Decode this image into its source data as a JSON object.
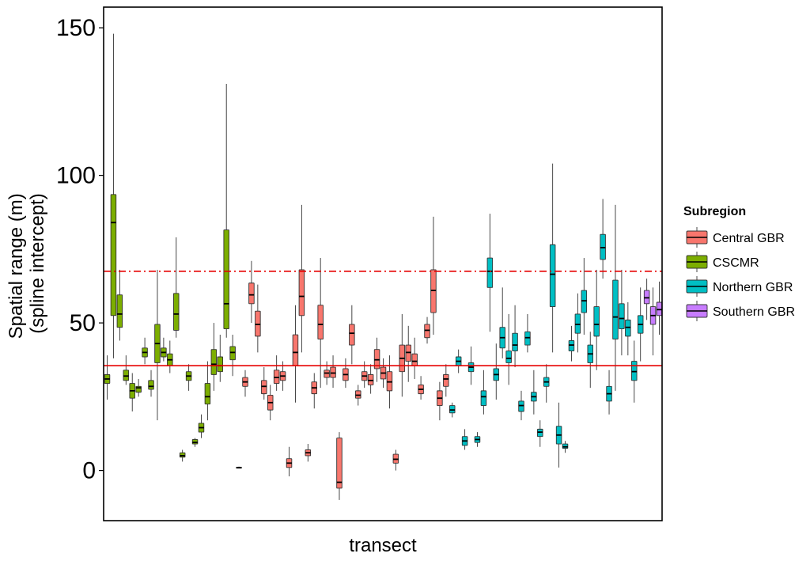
{
  "chart_data": {
    "type": "boxplot",
    "xlabel": "transect",
    "ylabel_lines": [
      "Spatial range (m)",
      "(spline intercept)"
    ],
    "ylim": [
      -17,
      157
    ],
    "yticks": [
      0,
      50,
      100,
      150
    ],
    "ytick_labels": [
      "0",
      "50",
      "100",
      "150"
    ],
    "grid": false,
    "legend": {
      "title": "Subregion",
      "placement": "right",
      "entries": [
        {
          "label": "Central GBR",
          "key": "central",
          "color": "#F8766D"
        },
        {
          "label": "CSCMR",
          "key": "cscmr",
          "color": "#7CAE00"
        },
        {
          "label": "Northern GBR",
          "key": "northern",
          "color": "#00BFC4"
        },
        {
          "label": "Southern GBR",
          "key": "southern",
          "color": "#C77CFF"
        }
      ]
    },
    "reference_lines": [
      {
        "y": 35.5,
        "style": "solid",
        "color": "#E60000"
      },
      {
        "y": 67.5,
        "style": "dashdot",
        "color": "#E60000"
      }
    ],
    "boxes": [
      {
        "g": "cscmr",
        "min": 24,
        "q1": 29.5,
        "med": 31,
        "q3": 32.5,
        "max": 39
      },
      {
        "g": "cscmr",
        "min": 38,
        "q1": 52.5,
        "med": 84,
        "q3": 93.5,
        "max": 148
      },
      {
        "g": "cscmr",
        "min": 44,
        "q1": 48.5,
        "med": 53,
        "q3": 59.5,
        "max": 68
      },
      {
        "g": "cscmr",
        "min": 29,
        "q1": 30.5,
        "med": 32,
        "q3": 34,
        "max": 39
      },
      {
        "g": "cscmr",
        "min": 20,
        "q1": 24.5,
        "med": 27,
        "q3": 29.5,
        "max": 33
      },
      {
        "g": "cscmr",
        "min": 25,
        "q1": 26.5,
        "med": 28,
        "q3": 28.5,
        "max": 31
      },
      {
        "g": "cscmr",
        "min": 36,
        "q1": 38.5,
        "med": 40,
        "q3": 41.5,
        "max": 45
      },
      {
        "g": "cscmr",
        "min": 25,
        "q1": 27.5,
        "med": 28.5,
        "q3": 30.5,
        "max": 34
      },
      {
        "g": "cscmr",
        "min": 17,
        "q1": 36.5,
        "med": 43,
        "q3": 49.5,
        "max": 68
      },
      {
        "g": "cscmr",
        "min": 37,
        "q1": 38.5,
        "med": 40,
        "q3": 41.5,
        "max": 45
      },
      {
        "g": "cscmr",
        "min": 33,
        "q1": 35.5,
        "med": 37.5,
        "q3": 39.5,
        "max": 44
      },
      {
        "g": "cscmr",
        "min": 45,
        "q1": 47.5,
        "med": 53,
        "q3": 60,
        "max": 79
      },
      {
        "g": "cscmr",
        "min": 3,
        "q1": 4.5,
        "med": 5,
        "q3": 6,
        "max": 7
      },
      {
        "g": "cscmr",
        "min": 27,
        "q1": 30.5,
        "med": 32,
        "q3": 33.5,
        "max": 36
      },
      {
        "g": "cscmr",
        "min": 8,
        "q1": 9,
        "med": 9.5,
        "q3": 10.5,
        "max": 11
      },
      {
        "g": "cscmr",
        "min": 11,
        "q1": 13,
        "med": 14.5,
        "q3": 16,
        "max": 19
      },
      {
        "g": "cscmr",
        "min": 17,
        "q1": 22.5,
        "med": 25,
        "q3": 29.5,
        "max": 37
      },
      {
        "g": "cscmr",
        "min": 27,
        "q1": 32.5,
        "med": 36,
        "q3": 41,
        "max": 50
      },
      {
        "g": "cscmr",
        "min": 30,
        "q1": 33.5,
        "med": 35.5,
        "q3": 38.5,
        "max": 46
      },
      {
        "g": "cscmr",
        "min": 45,
        "q1": 48,
        "med": 56.5,
        "q3": 81.5,
        "max": 131
      },
      {
        "g": "cscmr",
        "min": 32,
        "q1": 37.5,
        "med": 40,
        "q3": 42,
        "max": 46
      },
      {
        "g": "central",
        "min": 0.7,
        "q1": 0.9,
        "med": 1,
        "q3": 1.1,
        "max": 1.3
      },
      {
        "g": "central",
        "min": 25,
        "q1": 28.5,
        "med": 30,
        "q3": 31.5,
        "max": 34
      },
      {
        "g": "central",
        "min": 50,
        "q1": 56.5,
        "med": 59.5,
        "q3": 63.5,
        "max": 71
      },
      {
        "g": "central",
        "min": 40,
        "q1": 45.5,
        "med": 49.5,
        "q3": 54,
        "max": 63
      },
      {
        "g": "central",
        "min": 24,
        "q1": 26,
        "med": 28.5,
        "q3": 30.5,
        "max": 35
      },
      {
        "g": "central",
        "min": 17,
        "q1": 20.5,
        "med": 23,
        "q3": 25.5,
        "max": 29
      },
      {
        "g": "central",
        "min": 27,
        "q1": 29.5,
        "med": 31.5,
        "q3": 34,
        "max": 39
      },
      {
        "g": "central",
        "min": 27,
        "q1": 30.5,
        "med": 32,
        "q3": 33.5,
        "max": 37
      },
      {
        "g": "central",
        "min": -2,
        "q1": 1,
        "med": 2.5,
        "q3": 4,
        "max": 8
      },
      {
        "g": "central",
        "min": 23,
        "q1": 35.5,
        "med": 40,
        "q3": 46,
        "max": 56
      },
      {
        "g": "central",
        "min": 40,
        "q1": 52.5,
        "med": 59,
        "q3": 68,
        "max": 90
      },
      {
        "g": "central",
        "min": 3,
        "q1": 5,
        "med": 6,
        "q3": 7,
        "max": 9
      },
      {
        "g": "central",
        "min": 21,
        "q1": 26,
        "med": 28,
        "q3": 30,
        "max": 33
      },
      {
        "g": "central",
        "min": 28,
        "q1": 44.5,
        "med": 49.5,
        "q3": 56,
        "max": 72
      },
      {
        "g": "central",
        "min": 29,
        "q1": 31.5,
        "med": 33,
        "q3": 34,
        "max": 37
      },
      {
        "g": "central",
        "min": 28,
        "q1": 31.5,
        "med": 33,
        "q3": 35,
        "max": 39
      },
      {
        "g": "central",
        "min": -10,
        "q1": -6,
        "med": -4,
        "q3": 11,
        "max": 13
      },
      {
        "g": "central",
        "min": 28,
        "q1": 30.5,
        "med": 32.5,
        "q3": 34.5,
        "max": 38
      },
      {
        "g": "central",
        "min": 36,
        "q1": 42.5,
        "med": 46.5,
        "q3": 49.5,
        "max": 56
      },
      {
        "g": "central",
        "min": 22,
        "q1": 24.5,
        "med": 25.5,
        "q3": 27,
        "max": 29
      },
      {
        "g": "central",
        "min": 28,
        "q1": 30.5,
        "med": 32,
        "q3": 33.5,
        "max": 37
      },
      {
        "g": "central",
        "min": 26,
        "q1": 29,
        "med": 30.5,
        "q3": 32.5,
        "max": 36
      },
      {
        "g": "central",
        "min": 30,
        "q1": 34.5,
        "med": 37.5,
        "q3": 41,
        "max": 45
      },
      {
        "g": "central",
        "min": 28,
        "q1": 31,
        "med": 33,
        "q3": 35,
        "max": 38
      },
      {
        "g": "central",
        "min": 21,
        "q1": 27,
        "med": 30,
        "q3": 33.5,
        "max": 39
      },
      {
        "g": "central",
        "min": 0,
        "q1": 2.5,
        "med": 3.8,
        "q3": 5.5,
        "max": 7
      },
      {
        "g": "central",
        "min": 25,
        "q1": 33.5,
        "med": 38,
        "q3": 42.5,
        "max": 53
      },
      {
        "g": "central",
        "min": 30,
        "q1": 37,
        "med": 40,
        "q3": 42.5,
        "max": 49
      },
      {
        "g": "central",
        "min": 31,
        "q1": 35.5,
        "med": 37,
        "q3": 39.5,
        "max": 45
      },
      {
        "g": "central",
        "min": 24,
        "q1": 26,
        "med": 27.5,
        "q3": 29,
        "max": 32
      },
      {
        "g": "central",
        "min": 43,
        "q1": 45,
        "med": 47.5,
        "q3": 49.5,
        "max": 52
      },
      {
        "g": "central",
        "min": 46,
        "q1": 53.5,
        "med": 61,
        "q3": 68,
        "max": 86
      },
      {
        "g": "central",
        "min": 17,
        "q1": 22,
        "med": 24.5,
        "q3": 27,
        "max": 30
      },
      {
        "g": "central",
        "min": 25,
        "q1": 28.5,
        "med": 31,
        "q3": 32.5,
        "max": 36
      },
      {
        "g": "northern",
        "min": 18,
        "q1": 19.5,
        "med": 20.5,
        "q3": 22,
        "max": 23
      },
      {
        "g": "northern",
        "min": 33,
        "q1": 35.5,
        "med": 37,
        "q3": 38.5,
        "max": 41
      },
      {
        "g": "northern",
        "min": 7,
        "q1": 8.5,
        "med": 10,
        "q3": 11.5,
        "max": 14
      },
      {
        "g": "northern",
        "min": 29,
        "q1": 33.5,
        "med": 35,
        "q3": 36.5,
        "max": 42
      },
      {
        "g": "northern",
        "min": 8,
        "q1": 9.5,
        "med": 10.5,
        "q3": 11.5,
        "max": 13
      },
      {
        "g": "northern",
        "min": 19,
        "q1": 22,
        "med": 25,
        "q3": 27,
        "max": 34
      },
      {
        "g": "northern",
        "min": 47,
        "q1": 62,
        "med": 67.5,
        "q3": 72,
        "max": 87
      },
      {
        "g": "northern",
        "min": 24,
        "q1": 30.5,
        "med": 32.5,
        "q3": 34.5,
        "max": 43
      },
      {
        "g": "northern",
        "min": 38,
        "q1": 41.5,
        "med": 45,
        "q3": 48.5,
        "max": 62
      },
      {
        "g": "northern",
        "min": 29,
        "q1": 36.5,
        "med": 38,
        "q3": 40.5,
        "max": 53
      },
      {
        "g": "northern",
        "min": 35,
        "q1": 40.5,
        "med": 42.5,
        "q3": 46.5,
        "max": 56
      },
      {
        "g": "northern",
        "min": 17,
        "q1": 20,
        "med": 22,
        "q3": 23.5,
        "max": 27
      },
      {
        "g": "northern",
        "min": 40,
        "q1": 42.5,
        "med": 45,
        "q3": 47,
        "max": 53
      },
      {
        "g": "northern",
        "min": 19,
        "q1": 23.5,
        "med": 25,
        "q3": 26.5,
        "max": 34
      },
      {
        "g": "northern",
        "min": 8,
        "q1": 11.5,
        "med": 13,
        "q3": 14,
        "max": 17
      },
      {
        "g": "northern",
        "min": 23,
        "q1": 28.5,
        "med": 30,
        "q3": 31.5,
        "max": 36
      },
      {
        "g": "northern",
        "min": 40,
        "q1": 55.5,
        "med": 66.5,
        "q3": 76.5,
        "max": 104
      },
      {
        "g": "northern",
        "min": 1,
        "q1": 9,
        "med": 12,
        "q3": 15,
        "max": 23
      },
      {
        "g": "northern",
        "min": 6,
        "q1": 7.5,
        "med": 8,
        "q3": 9,
        "max": 10
      },
      {
        "g": "northern",
        "min": 37,
        "q1": 40.5,
        "med": 42.5,
        "q3": 44,
        "max": 49
      },
      {
        "g": "northern",
        "min": 40,
        "q1": 46.5,
        "med": 49.5,
        "q3": 53,
        "max": 60
      },
      {
        "g": "northern",
        "min": 46,
        "q1": 53.5,
        "med": 57.5,
        "q3": 61,
        "max": 72
      },
      {
        "g": "northern",
        "min": 28,
        "q1": 36.5,
        "med": 39.5,
        "q3": 42.5,
        "max": 47
      },
      {
        "g": "northern",
        "min": 34,
        "q1": 45.5,
        "med": 49.5,
        "q3": 55.5,
        "max": 68
      },
      {
        "g": "northern",
        "min": 65,
        "q1": 71.5,
        "med": 75.5,
        "q3": 80,
        "max": 92
      },
      {
        "g": "northern",
        "min": 19,
        "q1": 23.5,
        "med": 26,
        "q3": 28.5,
        "max": 34
      },
      {
        "g": "northern",
        "min": 27,
        "q1": 44.5,
        "med": 52,
        "q3": 64.5,
        "max": 90
      },
      {
        "g": "northern",
        "min": 39,
        "q1": 48,
        "med": 51.5,
        "q3": 56.5,
        "max": 68
      },
      {
        "g": "northern",
        "min": 39,
        "q1": 45.5,
        "med": 48.5,
        "q3": 51,
        "max": 57
      },
      {
        "g": "northern",
        "min": 23,
        "q1": 30.5,
        "med": 33.5,
        "q3": 37,
        "max": 44
      },
      {
        "g": "northern",
        "min": 37,
        "q1": 46.5,
        "med": 49.5,
        "q3": 52.5,
        "max": 62
      },
      {
        "g": "southern",
        "min": 51,
        "q1": 56.5,
        "med": 58.5,
        "q3": 61,
        "max": 65
      },
      {
        "g": "southern",
        "min": 39,
        "q1": 49.5,
        "med": 52.5,
        "q3": 55.5,
        "max": 62
      },
      {
        "g": "southern",
        "min": 46,
        "q1": 52.5,
        "med": 54.5,
        "q3": 57,
        "max": 64
      }
    ]
  }
}
